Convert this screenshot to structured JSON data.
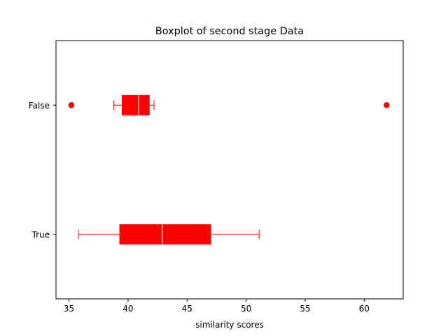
{
  "chart_data": {
    "type": "boxplot",
    "orientation": "horizontal",
    "title": "Boxplot of second stage Data",
    "xlabel": "similarity scores",
    "ylabel": "",
    "xlim": [
      33.9,
      63.3
    ],
    "xticks": [
      35,
      40,
      45,
      50,
      55,
      60
    ],
    "color": "#ff0000",
    "median_color": "#ffffff",
    "grid": false,
    "categories": [
      "True",
      "False"
    ],
    "boxes": [
      {
        "label": "True",
        "whisker_low": 35.8,
        "q1": 39.3,
        "median": 42.9,
        "q3": 47.0,
        "whisker_high": 51.1,
        "outliers": []
      },
      {
        "label": "False",
        "whisker_low": 38.8,
        "q1": 39.5,
        "median": 40.9,
        "q3": 41.8,
        "whisker_high": 42.2,
        "outliers": [
          35.2,
          61.9
        ]
      }
    ]
  }
}
